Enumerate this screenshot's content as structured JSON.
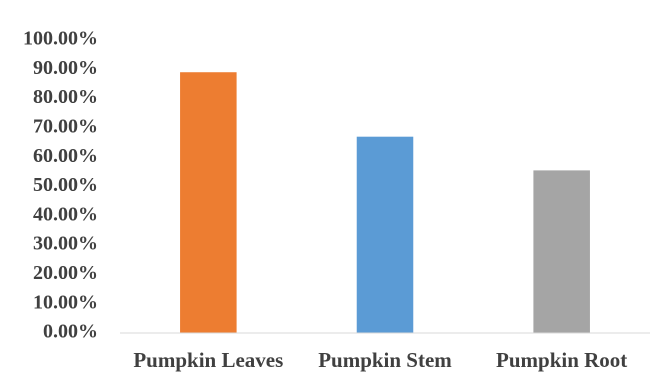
{
  "chart_data": {
    "type": "bar",
    "categories": [
      "Pumpkin Leaves",
      "Pumpkin Stem",
      "Pumpkin Root"
    ],
    "values": [
      0.89,
      0.67,
      0.555
    ],
    "colors": [
      "#ed7d31",
      "#5b9bd5",
      "#a5a5a5"
    ],
    "ylim": [
      0,
      1
    ],
    "y_ticks": [
      "0.00%",
      "10.00%",
      "20.00%",
      "30.00%",
      "40.00%",
      "50.00%",
      "60.00%",
      "70.00%",
      "80.00%",
      "90.00%",
      "100.00%"
    ],
    "grid": false,
    "legend": "none",
    "title": "",
    "xlabel": "",
    "ylabel": ""
  }
}
